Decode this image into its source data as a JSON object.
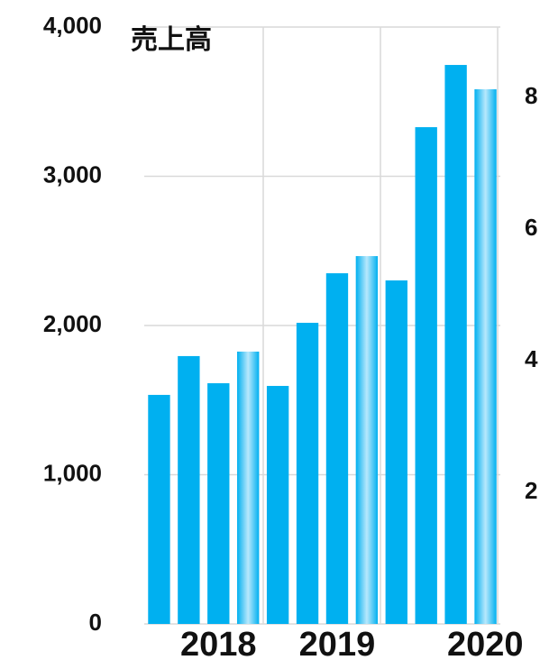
{
  "chart_data": {
    "type": "bar",
    "title": "売上高",
    "categories": [
      null,
      null,
      "2018",
      null,
      null,
      null,
      "2019",
      null,
      null,
      null,
      null,
      "2020"
    ],
    "values": [
      1535,
      1795,
      1613,
      1825,
      1595,
      2018,
      2350,
      2465,
      2302,
      3329,
      3746,
      3583
    ],
    "color": "#00b0f0",
    "colors": [
      "#00b0f0",
      "#00b0f0",
      "#00b0f0",
      "#b8e8fc",
      "#00b0f0",
      "#00b0f0",
      "#00b0f0",
      "#b8e8fc",
      "#00b0f0",
      "#00b0f0",
      "#00b0f0",
      "#b8e8fc"
    ],
    "ylim": [
      0,
      4000
    ],
    "yticks": [
      0,
      {
        "value": 1000,
        "label": "1,000"
      },
      {
        "value": 2000,
        "label": "2,000"
      },
      {
        "value": 3000,
        "label": "3,000"
      },
      {
        "value": 4000,
        "label": "4,000"
      }
    ],
    "y2lim": [
      0,
      9.07
    ],
    "y2ticks": [
      2,
      4,
      6,
      8
    ],
    "grid": true
  }
}
